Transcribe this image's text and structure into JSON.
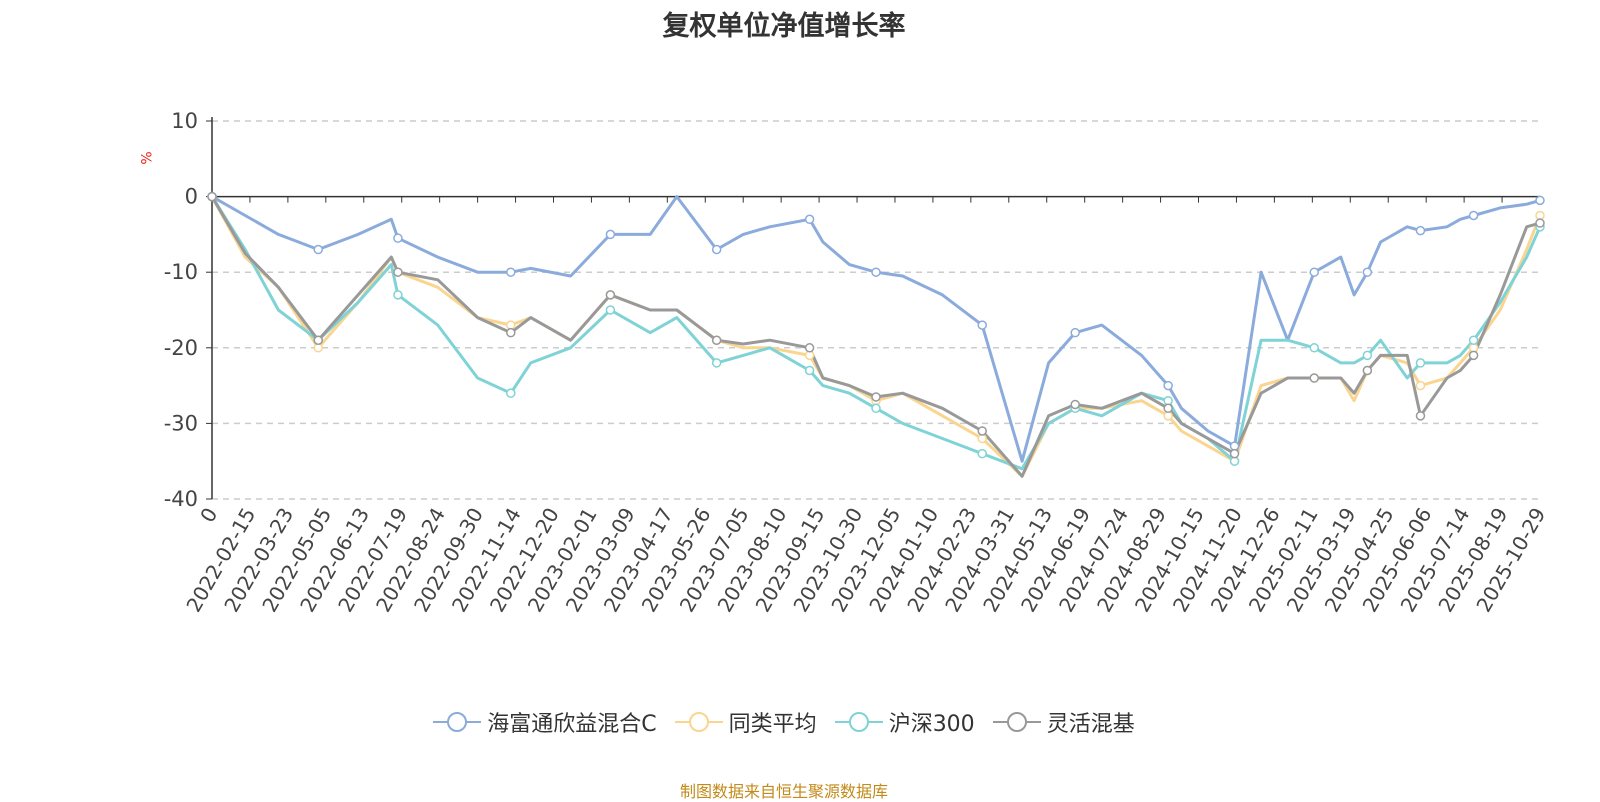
{
  "title": "复权单位净值增长率",
  "unit": "%",
  "source": "制图数据来自恒生聚源数据库",
  "chart_data": {
    "type": "line",
    "title": "复权单位净值增长率",
    "ylabel": "%",
    "ylim": [
      -40,
      10
    ],
    "yticks": [
      10,
      0,
      -10,
      -20,
      -30,
      -40
    ],
    "x_range": [
      0,
      100
    ],
    "xtick_labels": [
      "0",
      "2022-02-15",
      "2022-03-23",
      "2022-05-05",
      "2022-06-13",
      "2022-07-19",
      "2022-08-24",
      "2022-09-30",
      "2022-11-14",
      "2022-12-20",
      "2023-02-01",
      "2023-03-09",
      "2023-04-17",
      "2023-05-26",
      "2023-07-05",
      "2023-08-10",
      "2023-09-15",
      "2023-10-30",
      "2023-12-05",
      "2024-01-10",
      "2024-02-23",
      "2024-03-31",
      "2024-05-13",
      "2024-06-19",
      "2024-07-24",
      "2024-08-29",
      "2024-10-15",
      "2024-11-20",
      "2024-12-26",
      "2025-02-11",
      "2025-03-19",
      "2025-04-25",
      "2025-06-06",
      "2025-07-14",
      "2025-08-19",
      "2025-10-29"
    ],
    "grid": true,
    "legend": "bottom",
    "series": [
      {
        "name": "海富通欣益混合C",
        "color": "#8aabdb",
        "x": [
          0,
          2.5,
          5,
          8,
          11,
          13.5,
          14,
          17,
          20,
          22.5,
          24,
          27,
          30,
          33,
          35,
          38,
          40,
          42,
          45,
          46,
          48,
          50,
          52,
          55,
          58,
          61,
          63,
          65,
          67,
          70,
          72,
          73,
          75,
          77,
          79,
          81,
          83,
          85,
          86,
          87,
          88,
          90,
          91,
          93,
          94,
          95,
          97,
          99,
          100
        ],
        "y": [
          0,
          -2.5,
          -5,
          -7,
          -5,
          -3,
          -5.5,
          -8,
          -10,
          -10,
          -9.5,
          -10.5,
          -5,
          -5,
          0,
          -7,
          -5,
          -4,
          -3,
          -6,
          -9,
          -10,
          -10.5,
          -13,
          -17,
          -35,
          -22,
          -18,
          -17,
          -21,
          -25,
          -28,
          -31,
          -33,
          -10,
          -19,
          -10,
          -8,
          -13,
          -10,
          -6,
          -4,
          -4.5,
          -4,
          -3,
          -2.5,
          -1.5,
          -1,
          -0.5
        ]
      },
      {
        "name": "同类平均",
        "color": "#f9d58f",
        "x": [
          0,
          2.5,
          5,
          8,
          11,
          13.5,
          14,
          17,
          20,
          22.5,
          24,
          27,
          30,
          33,
          35,
          38,
          40,
          42,
          45,
          46,
          48,
          50,
          52,
          55,
          58,
          61,
          63,
          65,
          67,
          70,
          72,
          73,
          75,
          77,
          79,
          81,
          83,
          85,
          86,
          87,
          88,
          90,
          91,
          93,
          94,
          95,
          97,
          99,
          100
        ],
        "y": [
          0,
          -8,
          -12,
          -20,
          -14,
          -8,
          -10,
          -12,
          -16,
          -17,
          -16,
          -19,
          -13,
          -15,
          -15,
          -19,
          -20,
          -20,
          -21,
          -24,
          -25,
          -27,
          -26,
          -29,
          -32,
          -37,
          -30,
          -28,
          -28,
          -27,
          -29,
          -31,
          -33,
          -35,
          -25,
          -24,
          -24,
          -24,
          -27,
          -23,
          -21,
          -22,
          -25,
          -24,
          -22,
          -20,
          -15,
          -7,
          -2.5
        ]
      },
      {
        "name": "沪深300",
        "color": "#7fd3d6",
        "x": [
          0,
          2.5,
          5,
          8,
          11,
          13.5,
          14,
          17,
          20,
          22.5,
          24,
          27,
          30,
          33,
          35,
          38,
          40,
          42,
          45,
          46,
          48,
          50,
          52,
          55,
          58,
          61,
          63,
          65,
          67,
          70,
          72,
          73,
          75,
          77,
          79,
          81,
          83,
          85,
          86,
          87,
          88,
          90,
          91,
          93,
          94,
          95,
          97,
          99,
          100
        ],
        "y": [
          0,
          -7,
          -15,
          -19,
          -14,
          -9,
          -13,
          -17,
          -24,
          -26,
          -22,
          -20,
          -15,
          -18,
          -16,
          -22,
          -21,
          -20,
          -23,
          -25,
          -26,
          -28,
          -30,
          -32,
          -34,
          -36,
          -30,
          -28,
          -29,
          -26,
          -27,
          -30,
          -32,
          -35,
          -19,
          -19,
          -20,
          -22,
          -22,
          -21,
          -19,
          -24,
          -22,
          -22,
          -21,
          -19,
          -14,
          -8,
          -4
        ]
      },
      {
        "name": "灵活混基",
        "color": "#999999",
        "x": [
          0,
          2.5,
          5,
          8,
          11,
          13.5,
          14,
          17,
          20,
          22.5,
          24,
          27,
          30,
          33,
          35,
          38,
          40,
          42,
          45,
          46,
          48,
          50,
          52,
          55,
          58,
          61,
          63,
          65,
          67,
          70,
          72,
          73,
          75,
          77,
          79,
          81,
          83,
          85,
          86,
          87,
          88,
          90,
          91,
          93,
          94,
          95,
          97,
          99,
          100
        ],
        "y": [
          0,
          -7.5,
          -12,
          -19,
          -13,
          -8,
          -10,
          -11,
          -16,
          -18,
          -16,
          -19,
          -13,
          -15,
          -15,
          -19,
          -19.5,
          -19,
          -20,
          -24,
          -25,
          -26.5,
          -26,
          -28,
          -31,
          -37,
          -29,
          -27.5,
          -28,
          -26,
          -28,
          -30,
          -32,
          -34,
          -26,
          -24,
          -24,
          -24,
          -26,
          -23,
          -21,
          -21,
          -29,
          -24,
          -23,
          -21,
          -13,
          -4,
          -3.5
        ]
      }
    ]
  }
}
